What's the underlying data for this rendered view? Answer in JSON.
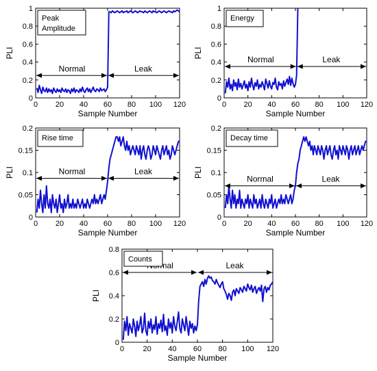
{
  "chart_data": [
    {
      "type": "line",
      "title": "",
      "legend_box": [
        "Peak",
        "Amplitude"
      ],
      "xlabel": "Sample Number",
      "ylabel": "PLI",
      "xlim": [
        0,
        120
      ],
      "ylim": [
        0,
        1
      ],
      "xticks": [
        "0",
        "20",
        "40",
        "60",
        "80",
        "100",
        "120"
      ],
      "yticks": [
        "0",
        "0.2",
        "0.4",
        "0.6",
        "0.8",
        "1"
      ],
      "annotations": {
        "normal": "Normal",
        "leak": "Leak",
        "arrow_y": 0.25,
        "split_x": 60
      },
      "series": [
        {
          "color": "#1010d0",
          "x_start": 1,
          "values": [
            0.11,
            0.06,
            0.14,
            0.09,
            0.05,
            0.12,
            0.08,
            0.07,
            0.11,
            0.06,
            0.1,
            0.07,
            0.09,
            0.05,
            0.11,
            0.08,
            0.06,
            0.1,
            0.07,
            0.09,
            0.06,
            0.11,
            0.08,
            0.07,
            0.1,
            0.06,
            0.09,
            0.08,
            0.05,
            0.1,
            0.07,
            0.11,
            0.06,
            0.09,
            0.08,
            0.06,
            0.1,
            0.07,
            0.12,
            0.08,
            0.06,
            0.09,
            0.11,
            0.07,
            0.1,
            0.06,
            0.09,
            0.12,
            0.08,
            0.07,
            0.1,
            0.09,
            0.07,
            0.11,
            0.08,
            0.09,
            0.1,
            0.07,
            0.09,
            0.12,
            0.96,
            0.96,
            0.95,
            0.97,
            0.96,
            0.95,
            0.96,
            0.97,
            0.96,
            0.95,
            0.96,
            0.97,
            0.95,
            0.96,
            0.96,
            0.97,
            0.95,
            0.96,
            0.97,
            0.96,
            0.95,
            0.96,
            0.97,
            0.96,
            0.95,
            0.96,
            0.97,
            0.96,
            0.96,
            0.95,
            0.97,
            0.96,
            0.95,
            0.96,
            0.97,
            0.96,
            0.95,
            0.97,
            0.96,
            0.96,
            0.95,
            0.96,
            0.97,
            0.96,
            0.95,
            0.96,
            0.97,
            0.96,
            0.95,
            0.96,
            0.97,
            0.96,
            0.96,
            0.95,
            0.97,
            0.96,
            0.97,
            0.98,
            0.97,
            0.96
          ]
        }
      ]
    },
    {
      "type": "line",
      "title": "",
      "legend_box": [
        "Energy"
      ],
      "xlabel": "Sample Number",
      "ylabel": "PLI",
      "xlim": [
        0,
        120
      ],
      "ylim": [
        0,
        1
      ],
      "xticks": [
        "0",
        "20",
        "40",
        "60",
        "80",
        "100",
        "120"
      ],
      "yticks": [
        "0",
        "0.2",
        "0.4",
        "0.6",
        "0.8",
        "1"
      ],
      "annotations": {
        "normal": "Normal",
        "leak": "Leak",
        "arrow_y": 0.35,
        "split_x": 61
      },
      "series": [
        {
          "color": "#1010d0",
          "x_start": 1,
          "values": [
            0.05,
            0.18,
            0.12,
            0.22,
            0.1,
            0.15,
            0.08,
            0.2,
            0.13,
            0.17,
            0.09,
            0.21,
            0.12,
            0.16,
            0.1,
            0.14,
            0.19,
            0.11,
            0.15,
            0.08,
            0.18,
            0.12,
            0.22,
            0.14,
            0.09,
            0.17,
            0.13,
            0.2,
            0.1,
            0.15,
            0.12,
            0.18,
            0.14,
            0.09,
            0.21,
            0.16,
            0.11,
            0.19,
            0.13,
            0.1,
            0.17,
            0.15,
            0.22,
            0.12,
            0.09,
            0.18,
            0.14,
            0.16,
            0.1,
            0.19,
            0.13,
            0.17,
            0.21,
            0.15,
            0.24,
            0.14,
            0.22,
            0.16,
            0.12,
            0.15,
            0.25,
            1.0
          ]
        }
      ]
    },
    {
      "type": "line",
      "title": "",
      "legend_box": [
        "Rise time"
      ],
      "xlabel": "Sample Number",
      "ylabel": "PLI",
      "xlim": [
        0,
        120
      ],
      "ylim": [
        0,
        0.2
      ],
      "xticks": [
        "0",
        "20",
        "40",
        "60",
        "80",
        "100",
        "120"
      ],
      "yticks": [
        "0",
        "0.05",
        "0.1",
        "0.15",
        "0.2"
      ],
      "annotations": {
        "normal": "Normal",
        "leak": "Leak",
        "arrow_y": 0.087,
        "split_x": 60
      },
      "series": [
        {
          "color": "#1010d0",
          "x_start": 1,
          "values": [
            0.01,
            0.04,
            0.02,
            0.06,
            0.03,
            0.01,
            0.05,
            0.02,
            0.07,
            0.03,
            0.02,
            0.04,
            0.01,
            0.05,
            0.03,
            0.02,
            0.04,
            0.01,
            0.03,
            0.05,
            0.02,
            0.03,
            0.01,
            0.04,
            0.02,
            0.03,
            0.05,
            0.02,
            0.03,
            0.02,
            0.04,
            0.02,
            0.03,
            0.02,
            0.04,
            0.03,
            0.02,
            0.03,
            0.04,
            0.02,
            0.03,
            0.02,
            0.04,
            0.03,
            0.02,
            0.03,
            0.04,
            0.03,
            0.05,
            0.03,
            0.04,
            0.03,
            0.04,
            0.05,
            0.03,
            0.04,
            0.05,
            0.04,
            0.06,
            0.08,
            0.11,
            0.13,
            0.14,
            0.15,
            0.16,
            0.17,
            0.18,
            0.18,
            0.17,
            0.18,
            0.16,
            0.17,
            0.18,
            0.16,
            0.15,
            0.17,
            0.15,
            0.16,
            0.14,
            0.15,
            0.16,
            0.15,
            0.14,
            0.16,
            0.15,
            0.14,
            0.16,
            0.13,
            0.15,
            0.16,
            0.14,
            0.13,
            0.15,
            0.16,
            0.15,
            0.13,
            0.14,
            0.16,
            0.15,
            0.14,
            0.16,
            0.15,
            0.14,
            0.13,
            0.15,
            0.16,
            0.14,
            0.15,
            0.16,
            0.14,
            0.15,
            0.13,
            0.14,
            0.16,
            0.15,
            0.14,
            0.15,
            0.16,
            0.17,
            0.17
          ]
        }
      ]
    },
    {
      "type": "line",
      "title": "",
      "legend_box": [
        "Decay time"
      ],
      "xlabel": "Sample Number",
      "ylabel": "PLI",
      "xlim": [
        0,
        120
      ],
      "ylim": [
        0,
        0.2
      ],
      "xticks": [
        "0",
        "20",
        "40",
        "60",
        "80",
        "100",
        "120"
      ],
      "yticks": [
        "0",
        "0.05",
        "0.1",
        "0.15",
        "0.2"
      ],
      "annotations": {
        "normal": "Normal",
        "leak": "Leak",
        "arrow_y": 0.07,
        "split_x": 60
      },
      "series": [
        {
          "color": "#1010d0",
          "x_start": 1,
          "values": [
            0.02,
            0.05,
            0.03,
            0.07,
            0.04,
            0.02,
            0.06,
            0.03,
            0.05,
            0.02,
            0.04,
            0.03,
            0.06,
            0.02,
            0.04,
            0.03,
            0.02,
            0.04,
            0.03,
            0.05,
            0.02,
            0.04,
            0.03,
            0.02,
            0.05,
            0.03,
            0.04,
            0.02,
            0.03,
            0.04,
            0.02,
            0.05,
            0.03,
            0.02,
            0.04,
            0.03,
            0.02,
            0.04,
            0.03,
            0.05,
            0.02,
            0.03,
            0.04,
            0.02,
            0.03,
            0.04,
            0.03,
            0.05,
            0.03,
            0.04,
            0.03,
            0.05,
            0.04,
            0.03,
            0.04,
            0.05,
            0.03,
            0.04,
            0.06,
            0.07,
            0.1,
            0.12,
            0.13,
            0.15,
            0.16,
            0.17,
            0.18,
            0.17,
            0.18,
            0.17,
            0.16,
            0.17,
            0.15,
            0.16,
            0.14,
            0.16,
            0.15,
            0.14,
            0.16,
            0.15,
            0.14,
            0.16,
            0.15,
            0.13,
            0.15,
            0.16,
            0.14,
            0.15,
            0.16,
            0.14,
            0.13,
            0.15,
            0.16,
            0.14,
            0.15,
            0.13,
            0.16,
            0.15,
            0.14,
            0.16,
            0.15,
            0.14,
            0.16,
            0.15,
            0.13,
            0.15,
            0.16,
            0.14,
            0.15,
            0.16,
            0.14,
            0.15,
            0.16,
            0.14,
            0.15,
            0.16,
            0.15,
            0.16,
            0.17,
            0.17
          ]
        }
      ]
    },
    {
      "type": "line",
      "title": "",
      "legend_box": [
        "Counts"
      ],
      "xlabel": "Sample Number",
      "ylabel": "PLI",
      "xlim": [
        0,
        120
      ],
      "ylim": [
        0,
        0.8
      ],
      "xticks": [
        "0",
        "20",
        "40",
        "60",
        "80",
        "100",
        "120"
      ],
      "yticks": [
        "0",
        "0.2",
        "0.4",
        "0.6",
        "0.8"
      ],
      "annotations": {
        "normal": "Normal",
        "leak": "Leak",
        "arrow_y": 0.6,
        "split_x": 60
      },
      "series": [
        {
          "color": "#1010d0",
          "x_start": 1,
          "values": [
            0.02,
            0.18,
            0.1,
            0.22,
            0.06,
            0.16,
            0.12,
            0.08,
            0.2,
            0.14,
            0.05,
            0.18,
            0.1,
            0.15,
            0.22,
            0.08,
            0.12,
            0.25,
            0.1,
            0.06,
            0.18,
            0.12,
            0.2,
            0.08,
            0.15,
            0.11,
            0.22,
            0.07,
            0.16,
            0.12,
            0.19,
            0.09,
            0.24,
            0.1,
            0.14,
            0.06,
            0.2,
            0.12,
            0.17,
            0.08,
            0.22,
            0.14,
            0.1,
            0.18,
            0.26,
            0.12,
            0.08,
            0.2,
            0.15,
            0.1,
            0.22,
            0.14,
            0.06,
            0.18,
            0.12,
            0.16,
            0.08,
            0.14,
            0.1,
            0.15,
            0.35,
            0.48,
            0.5,
            0.52,
            0.48,
            0.54,
            0.5,
            0.55,
            0.57,
            0.55,
            0.56,
            0.53,
            0.52,
            0.5,
            0.54,
            0.51,
            0.49,
            0.47,
            0.5,
            0.52,
            0.46,
            0.44,
            0.41,
            0.37,
            0.42,
            0.4,
            0.36,
            0.43,
            0.45,
            0.4,
            0.46,
            0.44,
            0.42,
            0.47,
            0.45,
            0.43,
            0.48,
            0.46,
            0.44,
            0.5,
            0.47,
            0.45,
            0.49,
            0.43,
            0.46,
            0.48,
            0.42,
            0.45,
            0.47,
            0.44,
            0.49,
            0.35,
            0.46,
            0.48,
            0.43,
            0.47,
            0.45,
            0.49,
            0.5,
            0.52
          ]
        }
      ]
    }
  ]
}
